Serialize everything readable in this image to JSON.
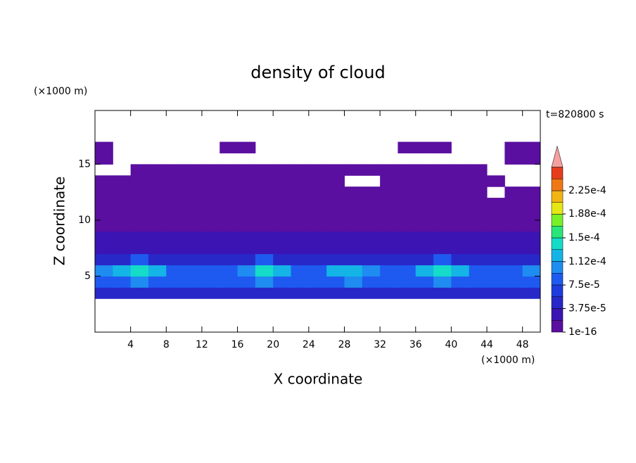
{
  "chart_data": {
    "type": "contour",
    "title": "density of cloud",
    "annotation": "t=820800 s",
    "x_label": "X coordinate",
    "y_label": "Z coordinate",
    "x_unit": "(×1000 m)",
    "y_unit": "(×1000 m)",
    "xlim": [
      0,
      50
    ],
    "ylim": [
      0,
      19.8
    ],
    "xticks": [
      4,
      8,
      12,
      16,
      20,
      24,
      28,
      32,
      36,
      40,
      44,
      48
    ],
    "yticks": [
      5,
      10,
      15
    ],
    "colorbar": {
      "ticks": [
        1e-16,
        {
          "value": 3.75e-05,
          "label": "3.75e-5"
        },
        {
          "value": 7.5e-05,
          "label": "7.5e-5"
        },
        {
          "value": 0.000112,
          "label": "1.12e-4"
        },
        {
          "value": 0.00015,
          "label": "1.5e-4"
        },
        {
          "value": 0.000188,
          "label": "1.88e-4"
        },
        {
          "value": 0.000225,
          "label": "2.25e-4"
        }
      ],
      "colors": [
        "#5a0fa0",
        "#3c14b4",
        "#2828c8",
        "#1e3cdc",
        "#1e5af0",
        "#1e8cf0",
        "#14b4e6",
        "#14dcc8",
        "#28e678",
        "#78f028",
        "#e6e614",
        "#f0b414",
        "#f07814",
        "#e63c1e"
      ],
      "extend_color": "#f4a0a0"
    },
    "field": {
      "x": [
        1,
        3,
        5,
        7,
        9,
        11,
        13,
        15,
        17,
        19,
        21,
        23,
        25,
        27,
        29,
        31,
        33,
        35,
        37,
        39,
        41,
        43,
        45,
        47,
        49
      ],
      "z": [
        3.5,
        4.5,
        5.5,
        6.5,
        7.5,
        8.5,
        9.5,
        10.5,
        11.5,
        12.5,
        13.5,
        14.5,
        15.5,
        16.5
      ],
      "values": [
        [
          3.75e-05,
          3.75e-05,
          3.75e-05,
          3.75e-05,
          3.75e-05,
          3.75e-05,
          3.75e-05,
          3.75e-05,
          3.75e-05,
          3.75e-05,
          3.75e-05,
          3.75e-05,
          3.75e-05,
          3.75e-05,
          3.75e-05,
          3.75e-05,
          3.75e-05,
          3.75e-05,
          3.75e-05,
          3.75e-05,
          3.75e-05,
          3.75e-05,
          3.75e-05,
          3.75e-05,
          3.75e-05
        ],
        [
          9e-05,
          9e-05,
          0.00011,
          9e-05,
          9e-05,
          9e-05,
          9e-05,
          9e-05,
          9e-05,
          0.00011,
          9e-05,
          9e-05,
          9e-05,
          9e-05,
          0.00011,
          9e-05,
          9e-05,
          9e-05,
          9e-05,
          0.00011,
          9e-05,
          9e-05,
          9e-05,
          9e-05,
          9e-05
        ],
        [
          0.0001,
          0.00012,
          0.00014,
          0.00012,
          8e-05,
          8e-05,
          8e-05,
          8e-05,
          0.00011,
          0.00014,
          0.00012,
          8e-05,
          8e-05,
          0.00012,
          0.00013,
          0.0001,
          8e-05,
          8e-05,
          0.00012,
          0.00014,
          0.00012,
          8e-05,
          8e-05,
          9e-05,
          0.0001
        ],
        [
          5e-05,
          5e-05,
          8e-05,
          5e-05,
          5e-05,
          5e-05,
          5e-05,
          5e-05,
          5e-05,
          8e-05,
          5e-05,
          5e-05,
          5e-05,
          5e-05,
          5e-05,
          5e-05,
          5e-05,
          5e-05,
          5e-05,
          8e-05,
          5e-05,
          5e-05,
          5e-05,
          5e-05,
          5e-05
        ],
        [
          3e-05,
          3e-05,
          3e-05,
          3e-05,
          3e-05,
          3e-05,
          3e-05,
          3e-05,
          3e-05,
          3e-05,
          3e-05,
          3e-05,
          3e-05,
          3e-05,
          3e-05,
          3e-05,
          3e-05,
          3e-05,
          3e-05,
          3e-05,
          3e-05,
          3e-05,
          3e-05,
          3e-05,
          3e-05
        ],
        [
          2e-05,
          2e-05,
          2e-05,
          2e-05,
          2e-05,
          2e-05,
          2e-05,
          2e-05,
          2e-05,
          2e-05,
          2e-05,
          2e-05,
          2e-05,
          2e-05,
          2e-05,
          2e-05,
          2e-05,
          2e-05,
          2e-05,
          2e-05,
          2e-05,
          2e-05,
          2e-05,
          2e-05,
          2e-05
        ],
        [
          1.5e-05,
          1.5e-05,
          1.5e-05,
          1.5e-05,
          1.5e-05,
          1.5e-05,
          1.5e-05,
          1.5e-05,
          1.5e-05,
          1.5e-05,
          1.5e-05,
          1.5e-05,
          1.5e-05,
          1.5e-05,
          1.5e-05,
          1.5e-05,
          1.5e-05,
          1.5e-05,
          1.5e-05,
          1.5e-05,
          1.5e-05,
          1.5e-05,
          1.5e-05,
          1.5e-05,
          1.5e-05
        ],
        [
          1e-05,
          1e-05,
          1e-05,
          1e-05,
          1e-05,
          1e-05,
          1e-05,
          1e-05,
          1e-05,
          1e-05,
          1e-05,
          1e-05,
          1e-05,
          1e-05,
          1e-05,
          1e-05,
          1e-05,
          1e-05,
          1e-05,
          1e-05,
          1e-05,
          1e-05,
          1e-05,
          1e-05,
          1e-05
        ],
        [
          6e-06,
          6e-06,
          6e-06,
          6e-06,
          6e-06,
          6e-06,
          6e-06,
          6e-06,
          6e-06,
          6e-06,
          6e-06,
          6e-06,
          6e-06,
          6e-06,
          6e-06,
          6e-06,
          6e-06,
          6e-06,
          6e-06,
          6e-06,
          6e-06,
          6e-06,
          6e-06,
          6e-06,
          6e-06
        ],
        [
          4e-06,
          4e-06,
          4e-06,
          4e-06,
          4e-06,
          4e-06,
          4e-06,
          4e-06,
          4e-06,
          4e-06,
          4e-06,
          4e-06,
          4e-06,
          4e-06,
          4e-06,
          4e-06,
          4e-06,
          4e-06,
          4e-06,
          4e-06,
          4e-06,
          4e-06,
          null,
          4e-06,
          4e-06
        ],
        [
          2e-06,
          2e-06,
          2e-06,
          2e-06,
          2e-06,
          2e-06,
          2e-06,
          2e-06,
          2e-06,
          2e-06,
          2e-06,
          2e-06,
          2e-06,
          2e-06,
          null,
          null,
          2e-06,
          2e-06,
          2e-06,
          2e-06,
          2e-06,
          2e-06,
          2e-06,
          null,
          null
        ],
        [
          null,
          null,
          1e-06,
          1e-06,
          1e-06,
          1e-06,
          1e-06,
          1e-06,
          1e-06,
          1e-06,
          1e-06,
          1e-06,
          1e-06,
          1e-06,
          1e-06,
          1e-06,
          1e-06,
          1e-06,
          1e-06,
          1e-06,
          1e-06,
          1e-06,
          null,
          null,
          null
        ],
        [
          1e-06,
          null,
          null,
          null,
          null,
          null,
          null,
          null,
          null,
          null,
          null,
          null,
          null,
          null,
          null,
          null,
          null,
          null,
          null,
          null,
          null,
          null,
          null,
          1e-06,
          1e-06
        ],
        [
          1e-06,
          null,
          null,
          null,
          null,
          null,
          null,
          1e-06,
          1e-06,
          null,
          null,
          null,
          null,
          null,
          null,
          null,
          null,
          1e-06,
          1e-06,
          1e-06,
          null,
          null,
          null,
          1e-06,
          1e-06
        ]
      ]
    }
  }
}
